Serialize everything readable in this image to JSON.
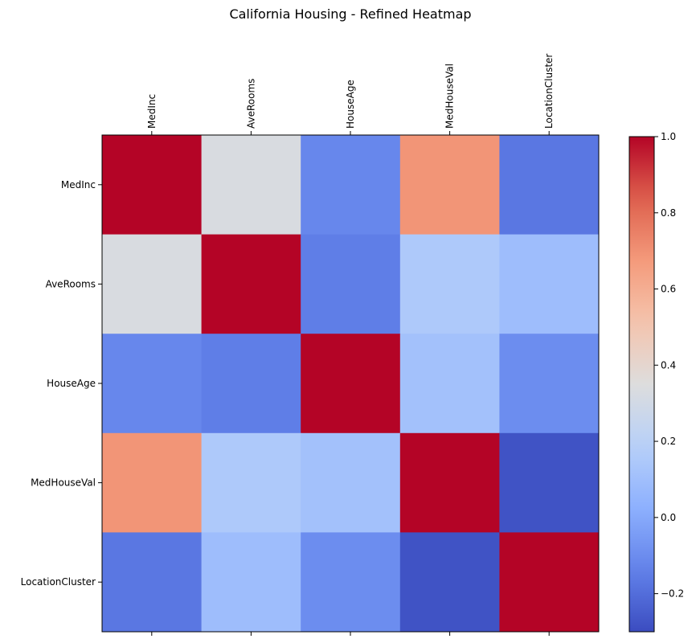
{
  "chart_data": {
    "type": "heatmap",
    "title": "California Housing - Refined Heatmap",
    "x_categories": [
      "MedInc",
      "AveRooms",
      "HouseAge",
      "MedHouseVal",
      "LocationCluster"
    ],
    "y_categories": [
      "MedInc",
      "AveRooms",
      "HouseAge",
      "MedHouseVal",
      "LocationCluster"
    ],
    "values": [
      [
        1.0,
        0.33,
        -0.12,
        0.69,
        -0.17
      ],
      [
        0.33,
        1.0,
        -0.15,
        0.15,
        0.09
      ],
      [
        -0.12,
        -0.15,
        1.0,
        0.11,
        -0.1
      ],
      [
        0.69,
        0.15,
        0.11,
        1.0,
        -0.28
      ],
      [
        -0.17,
        0.09,
        -0.1,
        -0.28,
        1.0
      ]
    ],
    "colormap": "coolwarm",
    "vmin": -0.3,
    "vmax": 1.0,
    "colorbar_ticks": [
      -0.2,
      0.0,
      0.2,
      0.4,
      0.6,
      0.8,
      1.0
    ],
    "colorbar_tick_labels": [
      "−0.2",
      "0.0",
      "0.2",
      "0.4",
      "0.6",
      "0.8",
      "1.0"
    ],
    "x_tick_position": "top",
    "grid": false
  }
}
